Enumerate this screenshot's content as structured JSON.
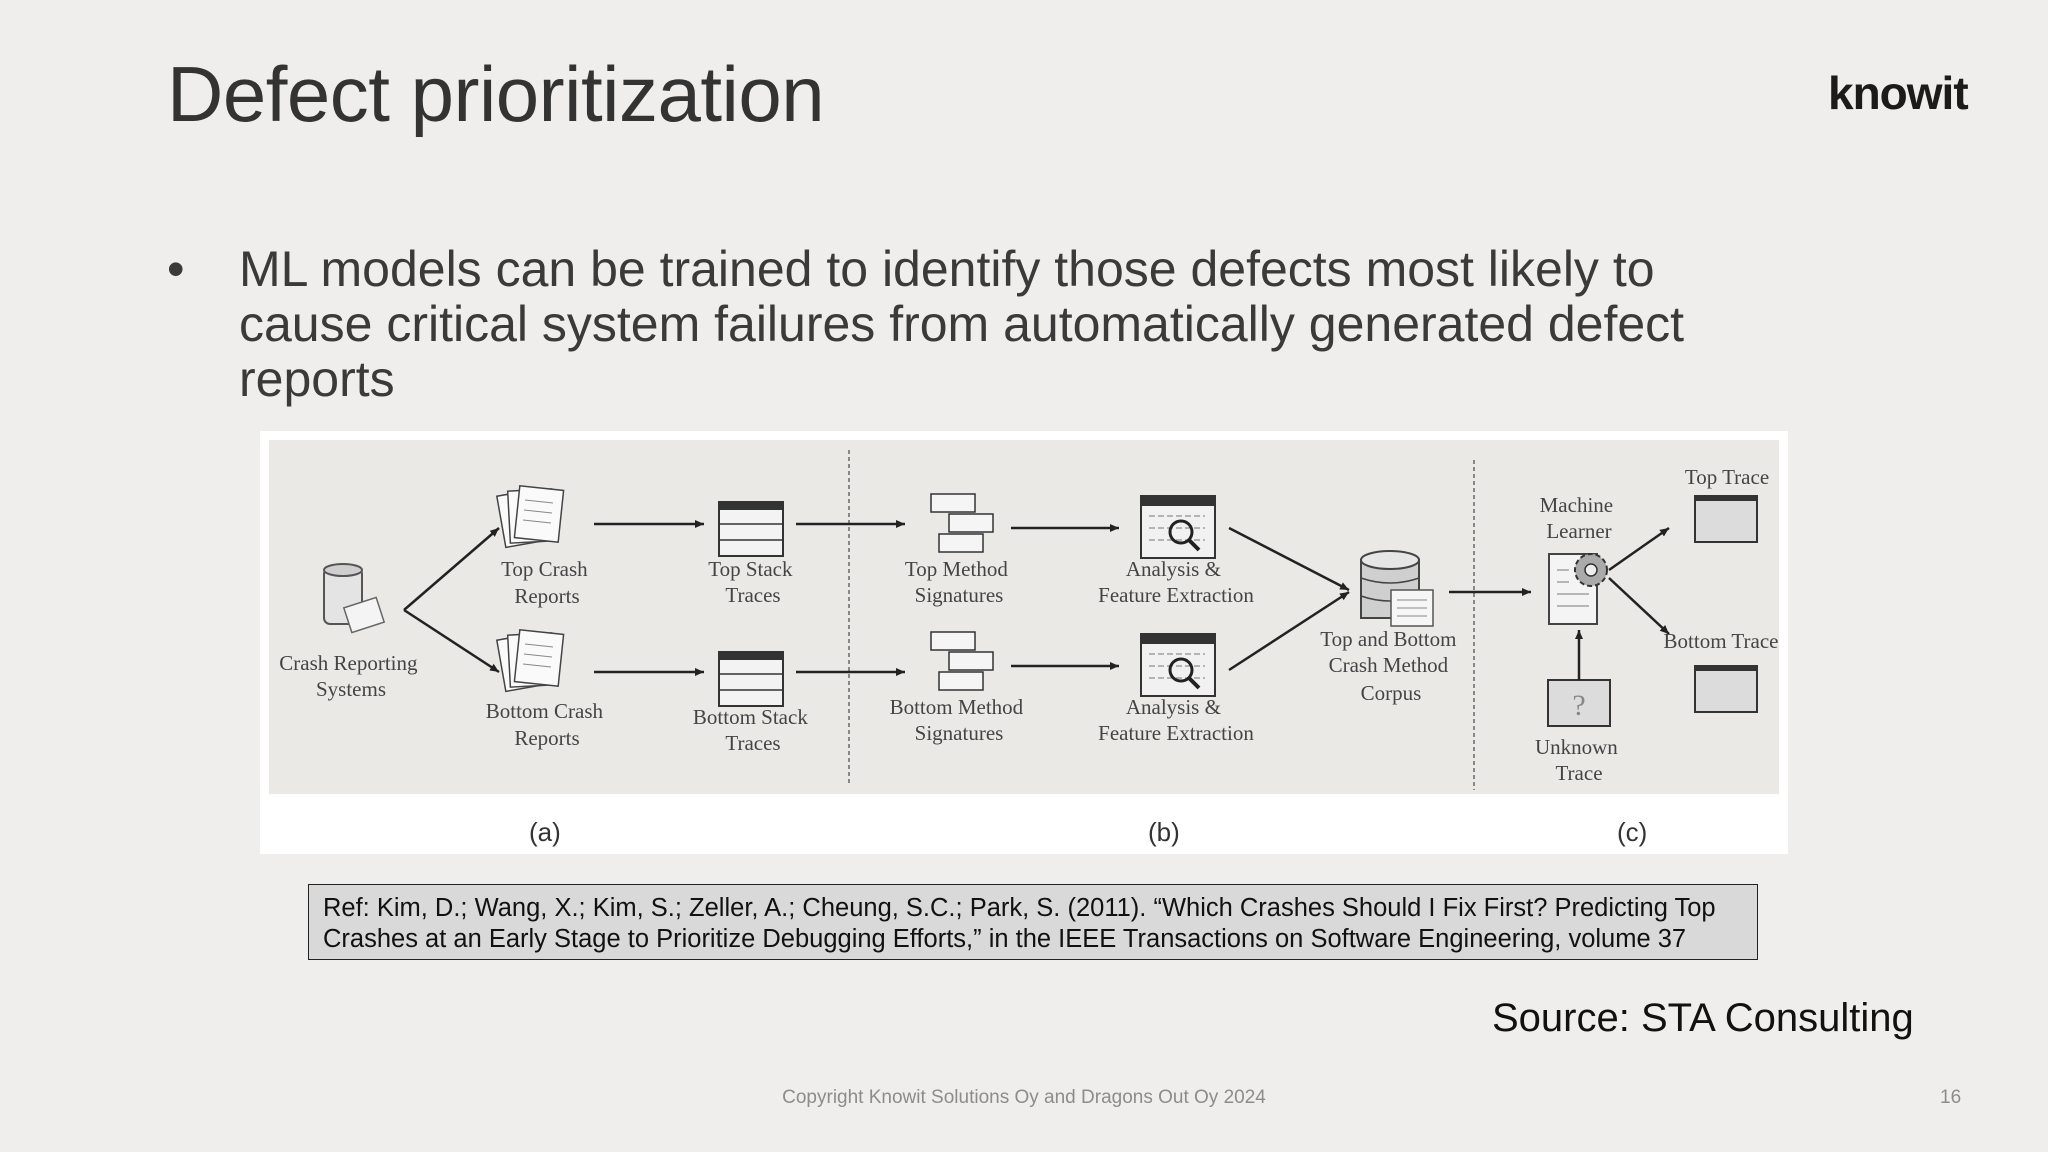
{
  "title": "Defect prioritization",
  "logo": "knowit",
  "bullet": {
    "symbol": "•",
    "lines": [
      "ML models can be trained to identify those defects most likely to",
      "cause critical system failures from automatically generated defect",
      "reports"
    ]
  },
  "figure": {
    "nodes": {
      "crash_reporting": [
        "Crash Reporting",
        "Systems"
      ],
      "top_crash_reports": [
        "Top Crash",
        "Reports"
      ],
      "bottom_crash_reports": [
        "Bottom Crash",
        "Reports"
      ],
      "top_stack_traces": [
        "Top Stack",
        "Traces"
      ],
      "bottom_stack_traces": [
        "Bottom Stack",
        "Traces"
      ],
      "top_method_signatures": [
        "Top Method",
        "Signatures"
      ],
      "bottom_method_signatures": [
        "Bottom Method",
        "Signatures"
      ],
      "analysis_top": [
        "Analysis &",
        "Feature Extraction"
      ],
      "analysis_bottom": [
        "Analysis &",
        "Feature Extraction"
      ],
      "corpus": [
        "Top and Bottom",
        "Crash Method",
        "Corpus"
      ],
      "machine_learner": [
        "Machine",
        "Learner"
      ],
      "unknown_trace": [
        "Unknown",
        "Trace"
      ],
      "top_trace": "Top Trace",
      "bottom_trace": "Bottom Trace"
    },
    "panel_labels": [
      "(a)",
      "(b)",
      "(c)"
    ]
  },
  "reference": {
    "line1": "Ref: Kim, D.; Wang, X.; Kim, S.; Zeller, A.; Cheung, S.C.; Park, S.  (2011).  “Which Crashes Should I Fix First? Predicting Top",
    "line2": "Crashes at an Early Stage to Prioritize Debugging Efforts,” in the IEEE Transactions on Software Engineering, volume 37"
  },
  "source": "Source: STA Consulting",
  "copyright": "Copyright Knowit Solutions Oy and Dragons Out Oy 2024",
  "page_number": "16"
}
